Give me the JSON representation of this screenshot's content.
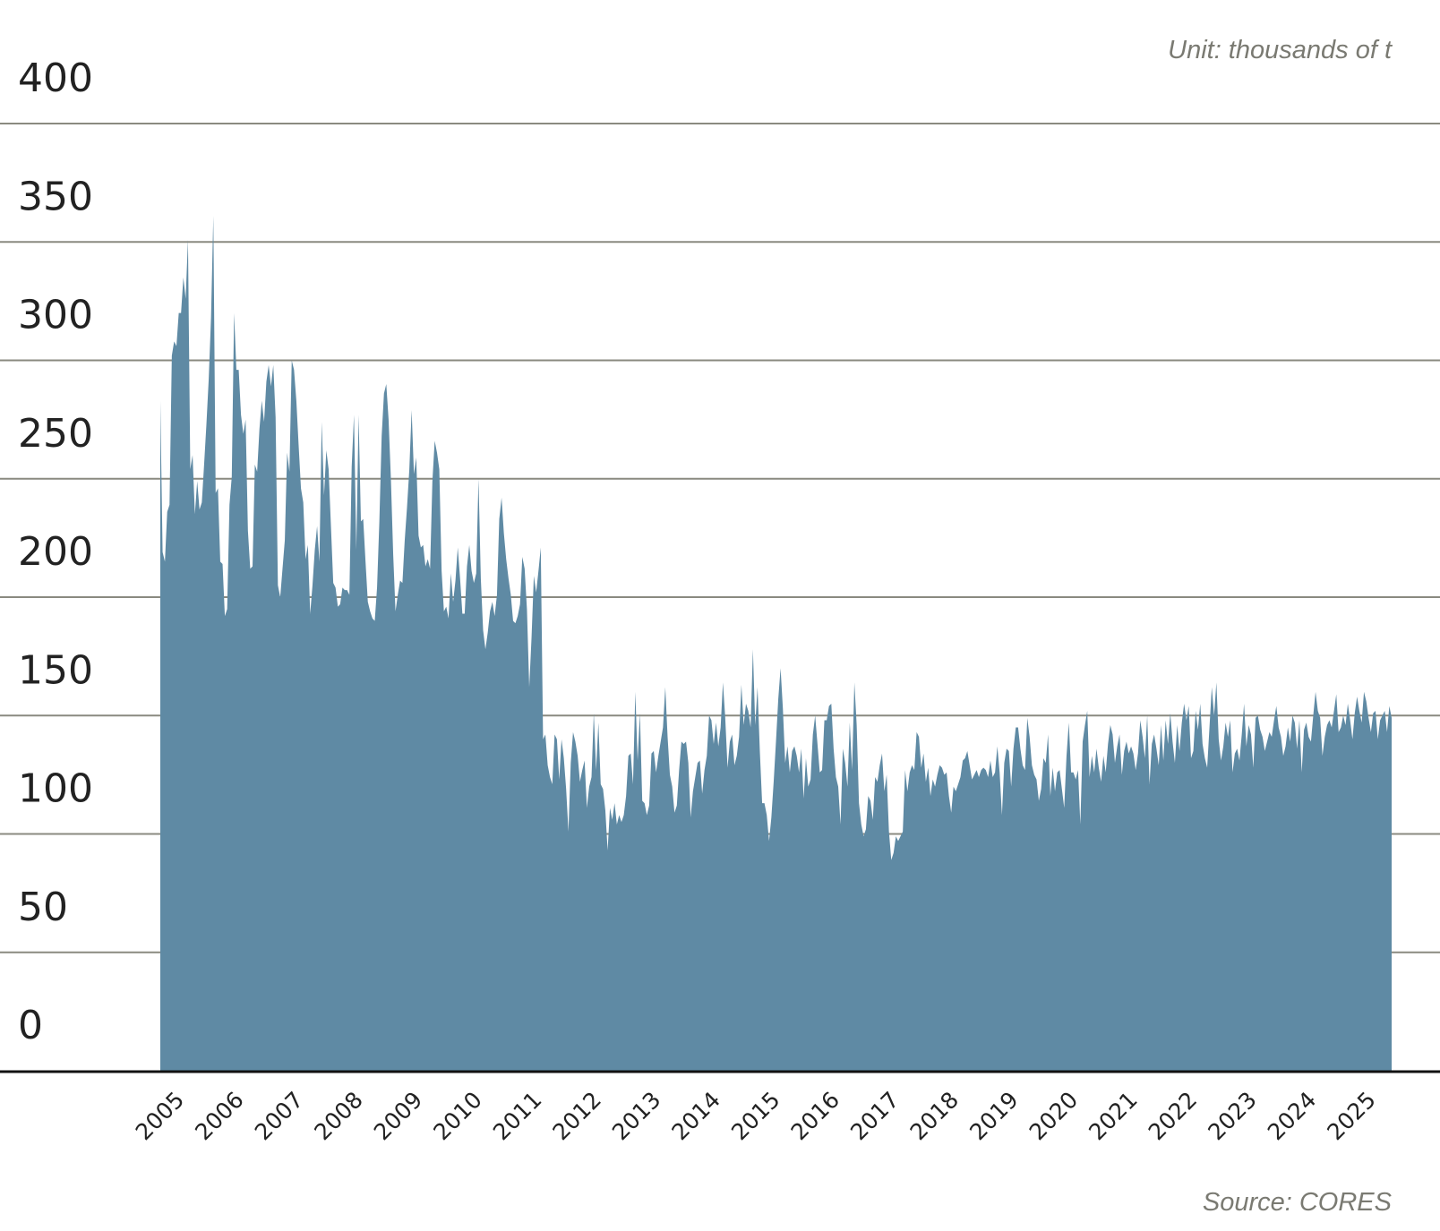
{
  "chart_data": {
    "type": "area",
    "unit_note": "Unit: thousands of t",
    "source": "Source: CORES",
    "ylim": [
      0,
      400
    ],
    "yticks": [
      "0",
      "50",
      "100",
      "150",
      "200",
      "250",
      "300",
      "350",
      "400"
    ],
    "ytick_values": [
      0,
      50,
      100,
      150,
      200,
      250,
      300,
      350,
      400
    ],
    "grid": true,
    "x_start": "2005-01",
    "x_end": "2025-09",
    "xticks": [
      "2005",
      "2006",
      "2007",
      "2008",
      "2009",
      "2010",
      "2011",
      "2012",
      "2013",
      "2014",
      "2015",
      "2016",
      "2017",
      "2018",
      "2019",
      "2020",
      "2021",
      "2022",
      "2023",
      "2024",
      "2025"
    ],
    "colors": {
      "area": "#5f8aa4",
      "grid": "#8a8a80",
      "baseline": "#111111"
    },
    "values": [
      283,
      219,
      215,
      236,
      239,
      302,
      308,
      306,
      320,
      320,
      335,
      326,
      351,
      254,
      260,
      235,
      249,
      237,
      240,
      256,
      273,
      292,
      318,
      361,
      244,
      246,
      215,
      214,
      192,
      195,
      239,
      251,
      320,
      296,
      296,
      277,
      269,
      275,
      228,
      212,
      213,
      256,
      253,
      271,
      283,
      274,
      291,
      298,
      289,
      298,
      276,
      205,
      200,
      212,
      224,
      261,
      253,
      300,
      296,
      283,
      264,
      246,
      240,
      216,
      222,
      193,
      205,
      220,
      230,
      215,
      274,
      243,
      262,
      254,
      230,
      206,
      204,
      196,
      197,
      204,
      203,
      203,
      201,
      255,
      277,
      220,
      277,
      232,
      233,
      215,
      198,
      194,
      191,
      190,
      204,
      232,
      268,
      286,
      290,
      275,
      250,
      218,
      194,
      201,
      207,
      206,
      224,
      238,
      254,
      279,
      252,
      259,
      226,
      221,
      222,
      213,
      216,
      212,
      249,
      266,
      261,
      254,
      211,
      194,
      196,
      191,
      210,
      198,
      207,
      221,
      208,
      193,
      193,
      213,
      222,
      211,
      206,
      210,
      250,
      208,
      186,
      178,
      185,
      194,
      198,
      192,
      201,
      233,
      242,
      227,
      216,
      208,
      201,
      190,
      189,
      192,
      197,
      217,
      212,
      195,
      162,
      183,
      209,
      202,
      211,
      221,
      140,
      142,
      129,
      124,
      121,
      142,
      140,
      123,
      140,
      132,
      119,
      101,
      130,
      143,
      139,
      133,
      122,
      127,
      131,
      111,
      120,
      124,
      151,
      127,
      147,
      121,
      119,
      110,
      93,
      111,
      106,
      113,
      104,
      108,
      105,
      108,
      116,
      133,
      134,
      121,
      160,
      131,
      151,
      114,
      113,
      108,
      112,
      134,
      135,
      126,
      133,
      139,
      145,
      162,
      141,
      125,
      120,
      109,
      112,
      127,
      139,
      138,
      139,
      130,
      107,
      118,
      124,
      130,
      131,
      117,
      127,
      133,
      150,
      148,
      138,
      147,
      137,
      145,
      164,
      149,
      128,
      139,
      142,
      129,
      133,
      141,
      163,
      146,
      155,
      152,
      145,
      178,
      146,
      162,
      135,
      113,
      113,
      108,
      97,
      107,
      122,
      139,
      157,
      170,
      153,
      130,
      137,
      126,
      135,
      137,
      133,
      126,
      136,
      115,
      132,
      120,
      123,
      142,
      150,
      138,
      126,
      127,
      148,
      148,
      154,
      155,
      136,
      124,
      120,
      104,
      136,
      130,
      120,
      147,
      127,
      164,
      146,
      113,
      104,
      99,
      102,
      116,
      114,
      106,
      124,
      122,
      129,
      134,
      118,
      125,
      101,
      89,
      92,
      99,
      97,
      99,
      101,
      127,
      118,
      126,
      129,
      127,
      143,
      141,
      128,
      134,
      122,
      128,
      116,
      123,
      120,
      125,
      129,
      128,
      125,
      126,
      116,
      109,
      120,
      118,
      121,
      124,
      131,
      132,
      135,
      129,
      123,
      125,
      127,
      124,
      127,
      128,
      127,
      124,
      131,
      124,
      126,
      137,
      126,
      108,
      130,
      136,
      135,
      120,
      136,
      145,
      145,
      136,
      129,
      127,
      149,
      141,
      129,
      125,
      123,
      114,
      119,
      132,
      130,
      142,
      116,
      128,
      118,
      126,
      127,
      119,
      111,
      133,
      147,
      126,
      126,
      123,
      127,
      104,
      139,
      146,
      152,
      124,
      133,
      126,
      136,
      128,
      122,
      133,
      126,
      138,
      146,
      142,
      130,
      137,
      142,
      125,
      135,
      139,
      134,
      137,
      134,
      127,
      134,
      148,
      141,
      132,
      150,
      121,
      138,
      142,
      136,
      129,
      146,
      131,
      148,
      138,
      151,
      139,
      130,
      146,
      135,
      147,
      155,
      148,
      154,
      132,
      135,
      152,
      144,
      155,
      138,
      132,
      128,
      145,
      162,
      150,
      164,
      140,
      131,
      137,
      147,
      141,
      148,
      126,
      134,
      136,
      131,
      142,
      155,
      137,
      146,
      142,
      128,
      149,
      150,
      144,
      141,
      135,
      139,
      143,
      141,
      148,
      154,
      145,
      141,
      133,
      137,
      145,
      139,
      150,
      147,
      136,
      148,
      126,
      144,
      147,
      141,
      139,
      150,
      160,
      152,
      149,
      133,
      141,
      146,
      148,
      145,
      152,
      159,
      143,
      145,
      150,
      146,
      155,
      148,
      140,
      151,
      158,
      152,
      147,
      160,
      156,
      149,
      143,
      151,
      152,
      140,
      148,
      150,
      152,
      143,
      154,
      149
    ]
  }
}
